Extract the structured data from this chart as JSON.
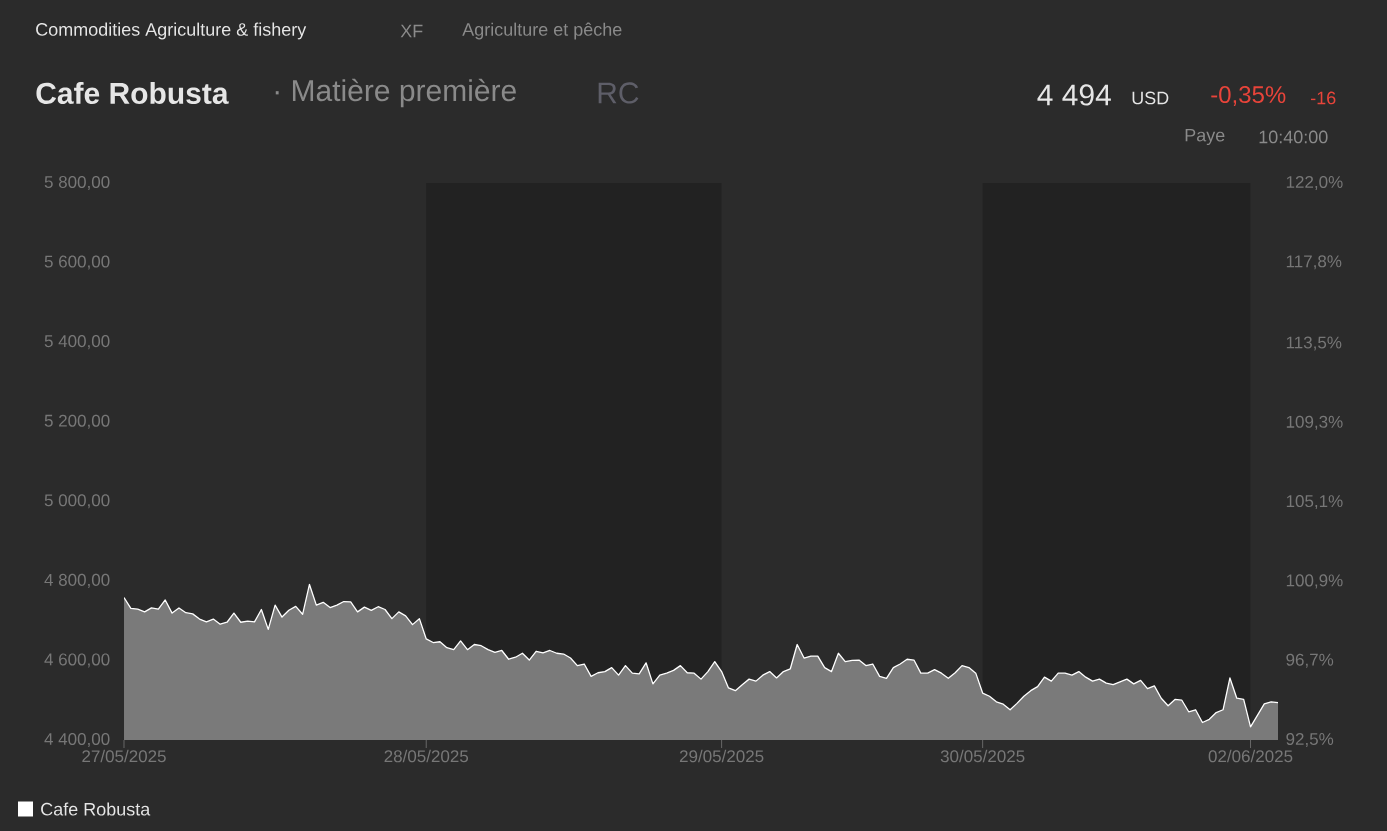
{
  "chart_data": {
    "type": "area",
    "title": "Cafe Robusta",
    "subtitle": "· Matière première",
    "annotations": [
      "Commodities Agriculture & fishery",
      "XF",
      "Agriculture et pêche",
      "RC",
      "4 494",
      "USD",
      "-0,35%",
      "-16",
      "Paye",
      "10:40:00"
    ],
    "categories": [
      "27/05/2025",
      null,
      null,
      null,
      null,
      null,
      null,
      null,
      null,
      null,
      null,
      null,
      null,
      null,
      null,
      null,
      null,
      null,
      null,
      null,
      null,
      null,
      null,
      null,
      null,
      null,
      null,
      null,
      null,
      null,
      null,
      null,
      null,
      null,
      null,
      null,
      null,
      null,
      null,
      null,
      null,
      null,
      null,
      null,
      "28/05/2025",
      null,
      null,
      null,
      null,
      null,
      null,
      null,
      null,
      null,
      null,
      null,
      null,
      null,
      null,
      null,
      null,
      null,
      null,
      null,
      null,
      null,
      null,
      null,
      null,
      null,
      null,
      null,
      null,
      null,
      null,
      null,
      null,
      null,
      null,
      null,
      null,
      null,
      null,
      null,
      null,
      null,
      null,
      "29/05/2025",
      null,
      null,
      null,
      null,
      null,
      null,
      null,
      null,
      null,
      null,
      null,
      null,
      null,
      null,
      null,
      null,
      null,
      null,
      null,
      null,
      null,
      null,
      null,
      null,
      null,
      null,
      null,
      null,
      null,
      null,
      null,
      null,
      null,
      null,
      null,
      null,
      null,
      "30/05/2025",
      null,
      null,
      null,
      null,
      null,
      null,
      null,
      null,
      null,
      null,
      null,
      null,
      null,
      null,
      null,
      null,
      null,
      null,
      null,
      null,
      null,
      null,
      null,
      null,
      null,
      null,
      null,
      null,
      null,
      null,
      null,
      null,
      null,
      null,
      null,
      null,
      null,
      null,
      "02/06/2025",
      null,
      null,
      null,
      null
    ],
    "series": [
      {
        "name": "Cafe Robusta",
        "color": "#ffffff",
        "values": [
          4758,
          4731,
          4729,
          4722,
          4732,
          4729,
          4752,
          4719,
          4732,
          4720,
          4717,
          4704,
          4697,
          4704,
          4691,
          4696,
          4719,
          4696,
          4699,
          4697,
          4728,
          4678,
          4739,
          4709,
          4726,
          4736,
          4716,
          4791,
          4739,
          4746,
          4733,
          4739,
          4748,
          4747,
          4722,
          4734,
          4726,
          4735,
          4728,
          4705,
          4722,
          4712,
          4690,
          4705,
          4654,
          4645,
          4647,
          4632,
          4627,
          4649,
          4627,
          4640,
          4637,
          4627,
          4620,
          4625,
          4603,
          4608,
          4618,
          4601,
          4623,
          4619,
          4625,
          4618,
          4616,
          4606,
          4587,
          4591,
          4560,
          4569,
          4572,
          4582,
          4563,
          4587,
          4568,
          4566,
          4594,
          4541,
          4563,
          4568,
          4575,
          4587,
          4569,
          4568,
          4553,
          4572,
          4597,
          4572,
          4531,
          4524,
          4539,
          4553,
          4548,
          4563,
          4572,
          4556,
          4572,
          4579,
          4640,
          4606,
          4611,
          4611,
          4582,
          4572,
          4618,
          4597,
          4600,
          4601,
          4587,
          4591,
          4560,
          4555,
          4582,
          4591,
          4603,
          4601,
          4568,
          4568,
          4577,
          4568,
          4555,
          4569,
          4587,
          4582,
          4568,
          4518,
          4510,
          4496,
          4490,
          4476,
          4492,
          4510,
          4524,
          4534,
          4558,
          4548,
          4568,
          4568,
          4563,
          4572,
          4558,
          4548,
          4553,
          4543,
          4539,
          4546,
          4553,
          4541,
          4550,
          4529,
          4536,
          4505,
          4486,
          4502,
          4500,
          4471,
          4476,
          4444,
          4452,
          4469,
          4476,
          4556,
          4505,
          4502,
          4433,
          4462,
          4491,
          4496,
          4494
        ]
      }
    ],
    "ylim": [
      4400,
      5800
    ],
    "yticks": [
      {
        "value": 4400,
        "label": "4 400,00"
      },
      {
        "value": 4600,
        "label": "4 600,00"
      },
      {
        "value": 4800,
        "label": "4 800,00"
      },
      {
        "value": 5000,
        "label": "5 000,00"
      },
      {
        "value": 5200,
        "label": "5 200,00"
      },
      {
        "value": 5400,
        "label": "5 400,00"
      },
      {
        "value": 5600,
        "label": "5 600,00"
      },
      {
        "value": 5800,
        "label": "5 800,00"
      }
    ],
    "y2lim": [
      92.5,
      122.0
    ],
    "y2ticks": [
      {
        "value": 92.5,
        "label": "92,5%"
      },
      {
        "value": 96.7,
        "label": "96,7%"
      },
      {
        "value": 100.9,
        "label": "100,9%"
      },
      {
        "value": 105.1,
        "label": "105,1%"
      },
      {
        "value": 109.3,
        "label": "109,3%"
      },
      {
        "value": 113.5,
        "label": "113,5%"
      },
      {
        "value": 117.8,
        "label": "117,8%"
      },
      {
        "value": 122.0,
        "label": "122,0%"
      }
    ],
    "bands": [
      {
        "axis": "x",
        "from": "28/05/2025",
        "to": "29/05/2025",
        "color": "#222222"
      },
      {
        "axis": "x",
        "from": "30/05/2025",
        "to": "02/06/2025",
        "color": "#222222"
      }
    ],
    "grid": false,
    "legend": "bottom left",
    "marker": "none",
    "line_style": "solid"
  }
}
